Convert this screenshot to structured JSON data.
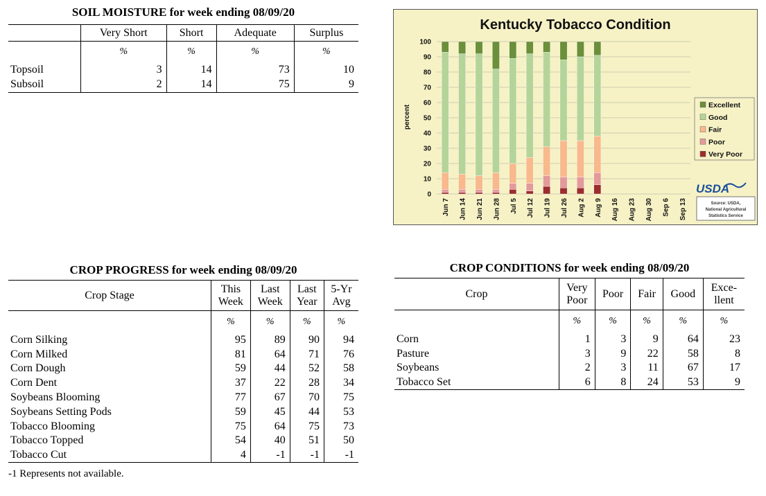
{
  "soil_moisture": {
    "title": "SOIL MOISTURE for week ending 08/09/20",
    "headers": [
      "",
      "Very Short",
      "Short",
      "Adequate",
      "Surplus"
    ],
    "units": [
      "",
      "%",
      "%",
      "%",
      "%"
    ],
    "rows": [
      {
        "label": "Topsoil",
        "values": [
          "3",
          "14",
          "73",
          "10"
        ]
      },
      {
        "label": "Subsoil",
        "values": [
          "2",
          "14",
          "75",
          "9"
        ]
      }
    ]
  },
  "crop_progress": {
    "title": "CROP PROGRESS for week ending 08/09/20",
    "headers": [
      "Crop Stage",
      "This Week",
      "Last Week",
      "Last Year",
      "5-Yr Avg"
    ],
    "headers_line1": [
      "This",
      "Last",
      "Last",
      "5-Yr"
    ],
    "headers_line2": [
      "Week",
      "Week",
      "Year",
      "Avg"
    ],
    "units": [
      "%",
      "%",
      "%",
      "%"
    ],
    "rows": [
      {
        "label": "Corn Silking",
        "values": [
          "95",
          "89",
          "90",
          "94"
        ]
      },
      {
        "label": "Corn Milked",
        "values": [
          "81",
          "64",
          "71",
          "76"
        ]
      },
      {
        "label": "Corn Dough",
        "values": [
          "59",
          "44",
          "52",
          "58"
        ]
      },
      {
        "label": "Corn Dent",
        "values": [
          "37",
          "22",
          "28",
          "34"
        ]
      },
      {
        "label": "Soybeans Blooming",
        "values": [
          "77",
          "67",
          "70",
          "75"
        ]
      },
      {
        "label": "Soybeans Setting Pods",
        "values": [
          "59",
          "45",
          "44",
          "53"
        ]
      },
      {
        "label": "Tobacco Blooming",
        "values": [
          "75",
          "64",
          "75",
          "73"
        ]
      },
      {
        "label": "Tobacco Topped",
        "values": [
          "54",
          "40",
          "51",
          "50"
        ]
      },
      {
        "label": "Tobacco Cut",
        "values": [
          "4",
          "-1",
          "-1",
          "-1"
        ]
      }
    ],
    "footnote": "-1 Represents not available."
  },
  "crop_conditions": {
    "title": "CROP CONDITIONS for week ending 08/09/20",
    "header_crop": "Crop",
    "headers_line1": [
      "Very",
      "Poor",
      "Fair",
      "Good",
      "Exce-"
    ],
    "headers_line2": [
      "Poor",
      "",
      "",
      "",
      "llent"
    ],
    "units": [
      "%",
      "%",
      "%",
      "%",
      "%"
    ],
    "rows": [
      {
        "label": "Corn",
        "values": [
          "1",
          "3",
          "9",
          "64",
          "23"
        ]
      },
      {
        "label": "Pasture",
        "values": [
          "3",
          "9",
          "22",
          "58",
          "8"
        ]
      },
      {
        "label": "Soybeans",
        "values": [
          "2",
          "3",
          "11",
          "67",
          "17"
        ]
      },
      {
        "label": "Tobacco Set",
        "values": [
          "6",
          "8",
          "24",
          "53",
          "9"
        ]
      }
    ]
  },
  "chart_data": {
    "type": "bar",
    "stacked": true,
    "title": "Kentucky Tobacco Condition",
    "ylabel": "percent",
    "xlabel": "",
    "ylim": [
      0,
      100
    ],
    "yticks": [
      0,
      10,
      20,
      30,
      40,
      50,
      60,
      70,
      80,
      90,
      100
    ],
    "categories": [
      "Jun 7",
      "Jun 14",
      "Jun 21",
      "Jun 28",
      "Jul 5",
      "Jul 12",
      "Jul 19",
      "Jul 26",
      "Aug 2",
      "Aug 9",
      "Aug 16",
      "Aug 23",
      "Aug 30",
      "Sep 6",
      "Sep 13"
    ],
    "series": [
      {
        "name": "Very Poor",
        "color": "#9b2d2d",
        "values": [
          1,
          1,
          1,
          1,
          3,
          2,
          5,
          4,
          4,
          6,
          null,
          null,
          null,
          null,
          null
        ]
      },
      {
        "name": "Poor",
        "color": "#e39a9a",
        "values": [
          2,
          2,
          2,
          2,
          4,
          5,
          7,
          7,
          7,
          8,
          null,
          null,
          null,
          null,
          null
        ]
      },
      {
        "name": "Fair",
        "color": "#f8b98c",
        "values": [
          11,
          10,
          9,
          11,
          13,
          17,
          19,
          24,
          24,
          24,
          null,
          null,
          null,
          null,
          null
        ]
      },
      {
        "name": "Good",
        "color": "#b5d49a",
        "values": [
          79,
          79,
          80,
          68,
          69,
          68,
          62,
          53,
          55,
          53,
          null,
          null,
          null,
          null,
          null
        ]
      },
      {
        "name": "Excellent",
        "color": "#6b8f3a",
        "values": [
          7,
          8,
          8,
          18,
          11,
          8,
          7,
          12,
          10,
          9,
          null,
          null,
          null,
          null,
          null
        ]
      }
    ],
    "legend_order": [
      "Excellent",
      "Good",
      "Fair",
      "Poor",
      "Very Poor"
    ],
    "legend_position": "right",
    "grid": true,
    "logo_text": "USDA",
    "source_lines": [
      "Source: USDA,",
      "National Agricultural",
      "Statistics Service"
    ]
  }
}
